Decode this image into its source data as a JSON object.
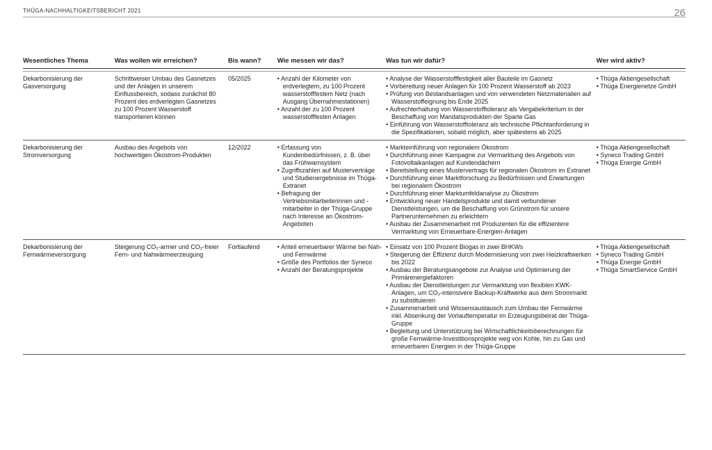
{
  "header": {
    "title": "THÜGA-NACHHALTIGKEITSBERICHT 2021",
    "page_number": "26"
  },
  "columns": [
    "Wesentliches Thema",
    "Was wollen wir erreichen?",
    "Bis wann?",
    "Wie messen wir das?",
    "Was tun wir dafür?",
    "Wer wird aktiv?"
  ],
  "rows": [
    {
      "topic": "Dekarbonisierung der Gasversorgung",
      "goal": "Schrittweiser Umbau des Gasnetzes und der Anlagen in unserem Einflussbereich, sodass zunächst 80 Prozent des erdverlegten Gasnetzes zu 100 Prozent Wasserstoff transportieren können",
      "deadline": "05/2025",
      "measures": [
        "Anzahl der Kilometer von erdverlegtem, zu 100 Prozent wasserstofffestem Netz (nach Ausgang Übernahmestationen)",
        "Anzahl der zu 100 Prozent wasserstofffesten Anlagen"
      ],
      "actions": [
        "Analyse der Wasserstofffestigkeit aller Bauteile im Gasnetz",
        "Vorbereitung neuer Anlagen für 100 Prozent Wasserstoff ab 2023",
        "Prüfung von Bestandsanlagen und von verwendeten Netzmaterialien auf Wasserstoffeignung bis Ende 2025",
        "Aufrechterhaltung von Wasserstofftoleranz als Vergabekriterium in der Beschaffung von Mandatsprodukten der Sparte Gas",
        "Einführung von Wasserstofftoleranz als technische Pflichtanforderung in die Spezifikationen, sobald möglich, aber spätestens ab 2025"
      ],
      "actors": [
        "Thüga Aktiengesellschaft",
        "Thüga Energienetze GmbH"
      ]
    },
    {
      "topic": "Dekarbonisierung der Stromversorgung",
      "goal": "Ausbau des Angebots von hochwertigen Ökostrom-Produkten",
      "deadline": "12/2022",
      "measures": [
        "Erfassung von Kundenbedürfnissen, z. B. über das Frühwarnsystem",
        "Zugriffszahlen auf Musterverträge und Studienergebnisse im Thüga-Extranet",
        "Befragung der Vertriebsmitarbeiterinnen und -mitarbeiter in der Thüga-Gruppe nach Interesse an Ökostrom-Angeboten"
      ],
      "actions": [
        "Markteinführung von regionalem Ökostrom",
        "Durchführung einer Kampagne zur Vermarktung des Angebots von Fotovoltaikanlagen auf Kundendächern",
        "Bereitstellung eines Mustervertrags für regionalen Ökostrom im Extranet",
        "Durchführung einer Marktforschung zu Bedürfnissen und Erwartungen bei regionalem Ökostrom",
        "Durchführung einer Marktumfeldanalyse zu Ökostrom",
        "Entwicklung neuer Handelsprodukte und damit verbundener Dienstleistungen, um die Beschaffung von Grünstrom für unsere Partnerunternehmen zu erleichtern",
        "Ausbau der Zusammenarbeit mit Produzenten für die effizientere Vermarktung von Erneuerbare-Energien-Anlagen"
      ],
      "actors": [
        "Thüga Aktiengesellschaft",
        "Syneco Trading GmbH",
        "Thüga Energie GmbH"
      ]
    },
    {
      "topic": "Dekarbonisierung der Fernwärmeversorgung",
      "goal": "Steigerung CO₂-armer und CO₂-freier Fern- und Nahwärmeerzeugung",
      "deadline": "Fortlaufend",
      "measures": [
        "Anteil erneuerbarer Wärme bei Nah- und Fernwärme",
        "Größe des Portfolios der Syneco",
        "Anzahl der Beratungsprojekte"
      ],
      "actions": [
        "Einsatz von 100 Prozent Biogas in zwei BHKWs",
        "Steigerung der Effizienz durch Modernisierung von zwei Heizkraftwerken bis 2022",
        "Ausbau der Beratungsangebote zur Analyse und Optimierung der Primärenergiefaktoren",
        "Ausbau der Dienstleistungen zur Vermarktung von flexiblen KWK-Anlagen, um CO₂-intensivere Backup-Kraftwerke aus dem Strommarkt zu substituieren",
        "Zusammenarbeit und Wissensaustausch zum Umbau der Fernwärme inkl. Absenkung der Vorlauftemperatur im Erzeugungsbeirat der Thüga-Gruppe",
        "Begleitung und Unterstützung bei Wirtschaftlichkeitsberechnungen für große Fernwärme-Investitionsprojekte weg von Kohle, hin zu Gas und erneuerbaren Energien in der Thüga-Gruppe"
      ],
      "actors": [
        "Thüga Aktiengesellschaft",
        "Syneco Trading GmbH",
        "Thüga Energie GmbH",
        "Thüga SmartService GmbH"
      ]
    }
  ]
}
